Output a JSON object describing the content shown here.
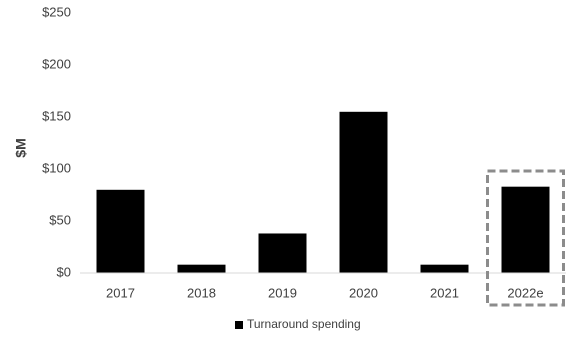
{
  "chart_data": {
    "type": "bar",
    "title": "",
    "xlabel": "",
    "ylabel": "$M",
    "categories": [
      "2017",
      "2018",
      "2019",
      "2020",
      "2021",
      "2022e"
    ],
    "series": [
      {
        "name": "Turnaround spending",
        "values": [
          80,
          8,
          38,
          155,
          8,
          83
        ],
        "color": "#000000"
      }
    ],
    "ylim": [
      0,
      250
    ],
    "yticks": [
      0,
      50,
      100,
      150,
      200,
      250
    ],
    "ytick_labels": [
      "$0",
      "$50",
      "$100",
      "$150",
      "$200",
      "$250"
    ],
    "grid": false,
    "legend": "bottom-center",
    "highlight": {
      "category": "2022e",
      "style": "dashed-box",
      "color": "#8c8c8c"
    }
  }
}
